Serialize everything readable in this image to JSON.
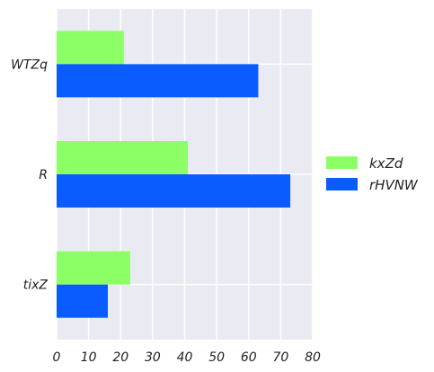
{
  "chart_data": {
    "type": "bar",
    "orientation": "horizontal",
    "categories": [
      "WTZq",
      "R",
      "tixZ"
    ],
    "series": [
      {
        "name": "kxZd",
        "values": [
          21,
          41,
          23
        ],
        "color": "#8cff66"
      },
      {
        "name": "rHVNW",
        "values": [
          63,
          73,
          16
        ],
        "color": "#0a5cff"
      }
    ],
    "xlim": [
      0,
      80
    ],
    "xticks": [
      0,
      10,
      20,
      30,
      40,
      50,
      60,
      70,
      80
    ],
    "grid": true,
    "legend_position": "right",
    "background_color": "#eaeaf2",
    "grid_color": "#ffffff"
  }
}
